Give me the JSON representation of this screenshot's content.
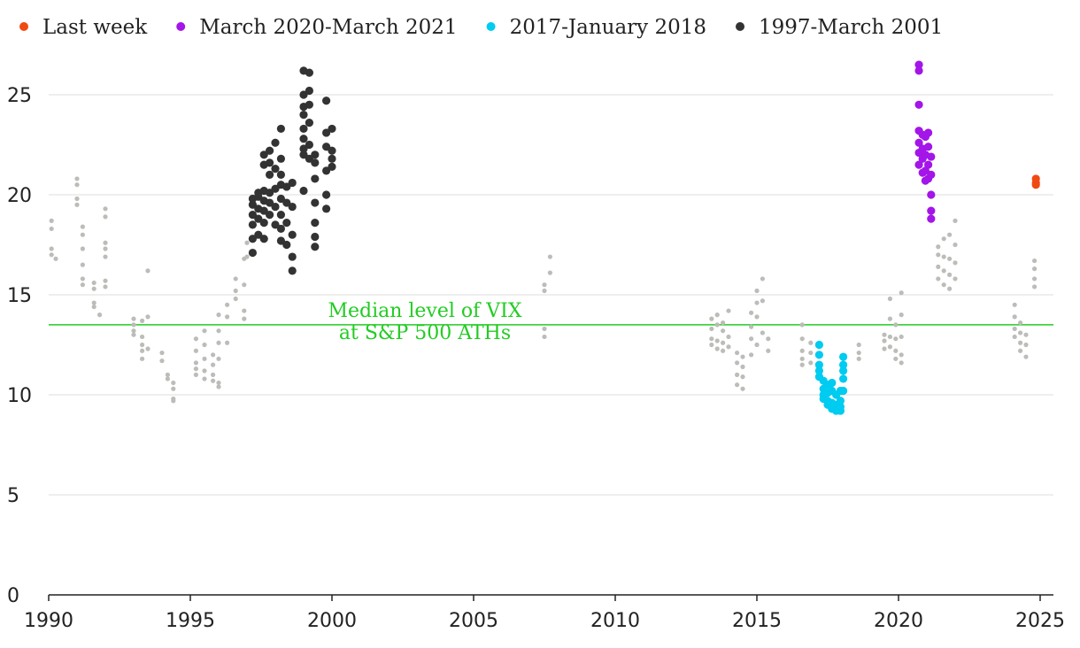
{
  "chart_data": {
    "type": "scatter",
    "xlim": [
      1990,
      2025
    ],
    "xticks": [
      1990,
      1995,
      2000,
      2005,
      2010,
      2015,
      2020,
      2025
    ],
    "ylim": [
      0,
      27
    ],
    "yticks": [
      0,
      5,
      10,
      15,
      20,
      25
    ],
    "grid": true,
    "legend": "top",
    "reference_line": {
      "value": 13.5,
      "color": "#22cc22",
      "label": [
        "Median level of VIX",
        "at S&P 500 ATHs"
      ]
    },
    "series": [
      {
        "name": "Last week",
        "color": "#f04a12",
        "x": [
          2024.85,
          2024.85,
          2024.85
        ],
        "y": [
          20.8,
          20.6,
          20.5
        ]
      },
      {
        "name": "March 2020-March 2021",
        "color": "#a315e8",
        "x": [
          2020.72,
          2020.72,
          2020.72,
          2020.72,
          2020.72,
          2020.72,
          2020.72,
          2020.85,
          2020.85,
          2020.85,
          2020.85,
          2020.95,
          2020.95,
          2020.95,
          2020.95,
          2021.05,
          2021.05,
          2021.05,
          2021.05,
          2021.15,
          2021.15,
          2021.15,
          2021.15,
          2021.15
        ],
        "y": [
          26.5,
          26.2,
          24.5,
          23.2,
          22.6,
          22.1,
          21.5,
          23.0,
          22.3,
          21.8,
          21.1,
          22.9,
          22.0,
          21.2,
          20.7,
          23.1,
          22.4,
          21.5,
          20.8,
          21.9,
          21.0,
          20.0,
          19.2,
          18.8
        ]
      },
      {
        "name": "2017-January 2018",
        "color": "#00cbf0",
        "x": [
          2017.2,
          2017.2,
          2017.2,
          2017.2,
          2017.2,
          2017.35,
          2017.35,
          2017.35,
          2017.35,
          2017.5,
          2017.5,
          2017.5,
          2017.5,
          2017.65,
          2017.65,
          2017.65,
          2017.65,
          2017.8,
          2017.8,
          2017.8,
          2017.95,
          2017.95,
          2017.95,
          2017.95,
          2018.05,
          2018.05,
          2018.05,
          2018.05,
          2018.05
        ],
        "y": [
          12.5,
          12.0,
          11.5,
          11.2,
          10.9,
          10.7,
          10.3,
          10.0,
          9.8,
          10.5,
          10.1,
          9.7,
          9.5,
          10.6,
          10.2,
          9.6,
          9.3,
          10.0,
          9.5,
          9.2,
          10.2,
          9.7,
          9.2,
          9.4,
          11.9,
          11.5,
          11.2,
          10.8,
          10.2
        ]
      },
      {
        "name": "1997-March 2001",
        "color": "#333333",
        "x": [
          1997.2,
          1997.2,
          1997.2,
          1997.2,
          1997.2,
          1997.2,
          1997.4,
          1997.4,
          1997.4,
          1997.4,
          1997.4,
          1997.6,
          1997.6,
          1997.6,
          1997.6,
          1997.6,
          1997.6,
          1997.6,
          1997.8,
          1997.8,
          1997.8,
          1997.8,
          1997.8,
          1997.8,
          1998.0,
          1998.0,
          1998.0,
          1998.0,
          1998.0,
          1998.2,
          1998.2,
          1998.2,
          1998.2,
          1998.2,
          1998.2,
          1998.2,
          1998.2,
          1998.4,
          1998.4,
          1998.4,
          1998.4,
          1998.6,
          1998.6,
          1998.6,
          1998.6,
          1998.6,
          1999.0,
          1999.0,
          1999.0,
          1999.0,
          1999.0,
          1999.0,
          1999.0,
          1999.0,
          1999.0,
          1999.2,
          1999.2,
          1999.2,
          1999.2,
          1999.2,
          1999.2,
          1999.4,
          1999.4,
          1999.4,
          1999.4,
          1999.4,
          1999.4,
          1999.4,
          1999.8,
          1999.8,
          1999.8,
          1999.8,
          1999.8,
          1999.8,
          2000.0,
          2000.0,
          2000.0,
          2000.0
        ],
        "y": [
          17.1,
          17.8,
          18.5,
          19.0,
          19.5,
          19.8,
          18.0,
          18.8,
          19.3,
          19.9,
          20.1,
          17.8,
          18.6,
          19.2,
          19.7,
          20.2,
          21.5,
          22.0,
          19.0,
          19.6,
          20.1,
          21.0,
          21.6,
          22.2,
          18.5,
          19.4,
          20.3,
          21.3,
          22.6,
          17.7,
          18.3,
          19.0,
          19.8,
          20.5,
          21.0,
          21.8,
          23.3,
          17.5,
          18.6,
          19.6,
          20.4,
          16.2,
          16.9,
          18.0,
          19.4,
          20.6,
          20.2,
          22.0,
          22.3,
          22.8,
          23.3,
          24.0,
          24.4,
          25.0,
          26.2,
          21.8,
          22.5,
          23.6,
          24.5,
          25.2,
          26.1,
          17.4,
          17.9,
          18.6,
          19.6,
          20.8,
          21.6,
          22.0,
          19.3,
          20.0,
          21.2,
          22.4,
          23.1,
          24.7,
          21.4,
          21.8,
          22.2,
          23.3
        ]
      },
      {
        "color": "#bcbcb8",
        "x": [
          1990.1,
          1990.1,
          1990.1,
          1990.1,
          1990.25,
          1991.0,
          1991.0,
          1991.0,
          1991.0,
          1991.2,
          1991.2,
          1991.2,
          1991.2,
          1991.2,
          1991.2,
          1991.6,
          1991.6,
          1991.6,
          1991.6,
          1991.8,
          1992.0,
          1992.0,
          1992.0,
          1992.0,
          1992.0,
          1992.0,
          1992.0,
          1993.0,
          1993.0,
          1993.0,
          1993.0,
          1993.3,
          1993.3,
          1993.3,
          1993.3,
          1993.3,
          1993.5,
          1993.5,
          1993.5,
          1994.0,
          1994.0,
          1994.2,
          1994.2,
          1994.4,
          1994.4,
          1994.4,
          1994.4,
          1995.2,
          1995.2,
          1995.2,
          1995.2,
          1995.2,
          1995.5,
          1995.5,
          1995.5,
          1995.5,
          1995.5,
          1995.8,
          1995.8,
          1995.8,
          1995.8,
          1996.0,
          1996.0,
          1996.0,
          1996.0,
          1996.0,
          1996.0,
          1996.3,
          1996.3,
          1996.3,
          1996.6,
          1996.6,
          1996.6,
          1996.9,
          1996.9,
          1996.9,
          1996.9,
          1997.0,
          1997.0,
          2007.5,
          2007.5,
          2007.5,
          2007.5,
          2007.7,
          2007.7,
          2013.4,
          2013.4,
          2013.4,
          2013.4,
          2013.6,
          2013.6,
          2013.6,
          2013.6,
          2013.8,
          2013.8,
          2013.8,
          2013.8,
          2014.0,
          2014.0,
          2014.0,
          2014.3,
          2014.3,
          2014.3,
          2014.3,
          2014.5,
          2014.5,
          2014.5,
          2014.5,
          2014.8,
          2014.8,
          2014.8,
          2014.8,
          2015.0,
          2015.0,
          2015.0,
          2015.0,
          2015.2,
          2015.2,
          2015.2,
          2015.4,
          2015.4,
          2016.6,
          2016.6,
          2016.6,
          2016.6,
          2016.6,
          2016.9,
          2016.9,
          2016.9,
          2018.6,
          2018.6,
          2018.6,
          2019.5,
          2019.5,
          2019.5,
          2019.7,
          2019.7,
          2019.7,
          2019.7,
          2019.9,
          2019.9,
          2019.9,
          2019.9,
          2020.1,
          2020.1,
          2020.1,
          2020.1,
          2020.1,
          2021.4,
          2021.4,
          2021.4,
          2021.4,
          2021.6,
          2021.6,
          2021.6,
          2021.6,
          2021.8,
          2021.8,
          2021.8,
          2021.8,
          2022.0,
          2022.0,
          2022.0,
          2022.0,
          2024.1,
          2024.1,
          2024.1,
          2024.1,
          2024.3,
          2024.3,
          2024.3,
          2024.3,
          2024.5,
          2024.5,
          2024.5,
          2024.8,
          2024.8,
          2024.8,
          2024.8
        ],
        "y": [
          18.7,
          18.3,
          17.3,
          17.0,
          16.8,
          20.8,
          20.5,
          19.8,
          19.5,
          18.4,
          18.0,
          17.3,
          16.5,
          15.8,
          15.5,
          15.6,
          15.3,
          14.6,
          14.4,
          14.0,
          19.3,
          18.9,
          17.6,
          17.3,
          16.9,
          15.7,
          15.4,
          13.8,
          13.5,
          13.2,
          13.0,
          13.7,
          12.9,
          12.5,
          12.2,
          11.8,
          16.2,
          13.9,
          12.3,
          12.1,
          11.7,
          11.0,
          10.8,
          10.6,
          10.3,
          9.8,
          9.7,
          12.8,
          12.2,
          11.6,
          11.3,
          11.0,
          13.2,
          12.5,
          11.8,
          11.2,
          10.8,
          12.0,
          11.5,
          11.0,
          10.7,
          14.0,
          13.2,
          12.6,
          11.8,
          10.6,
          10.4,
          14.5,
          13.9,
          12.6,
          15.8,
          15.2,
          14.8,
          16.8,
          15.5,
          14.2,
          13.8,
          17.6,
          16.9,
          15.5,
          15.2,
          13.3,
          12.9,
          16.9,
          16.1,
          13.8,
          13.3,
          12.8,
          12.5,
          14.0,
          13.5,
          12.7,
          12.3,
          13.6,
          13.2,
          12.6,
          12.2,
          14.2,
          12.9,
          12.4,
          12.1,
          11.6,
          11.0,
          10.5,
          11.9,
          11.4,
          10.9,
          10.3,
          14.1,
          13.4,
          12.8,
          12.0,
          15.2,
          14.6,
          13.9,
          12.5,
          15.8,
          14.7,
          13.1,
          12.8,
          12.2,
          13.5,
          12.8,
          12.2,
          11.8,
          11.5,
          12.6,
          12.1,
          11.6,
          12.5,
          12.1,
          11.8,
          13.0,
          12.7,
          12.3,
          14.8,
          13.8,
          12.9,
          12.4,
          13.5,
          12.8,
          12.2,
          11.8,
          15.1,
          14.0,
          12.9,
          12.0,
          11.6,
          17.4,
          17.0,
          16.4,
          15.8,
          17.8,
          16.9,
          16.2,
          15.5,
          18.0,
          16.8,
          16.0,
          15.3,
          18.7,
          17.5,
          16.6,
          15.8,
          14.5,
          13.9,
          13.3,
          12.9,
          13.6,
          13.1,
          12.6,
          12.2,
          13.0,
          12.5,
          11.9,
          16.7,
          16.3,
          15.8,
          15.4
        ]
      }
    ]
  }
}
